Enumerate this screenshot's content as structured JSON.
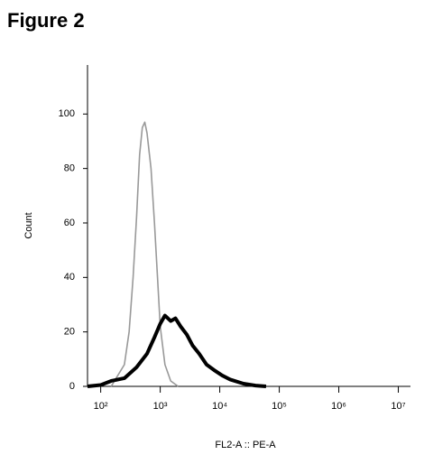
{
  "chart_data": {
    "type": "line",
    "title": "Figure 2",
    "x_label": "FL2-A :: PE-A",
    "y_label": "Count",
    "xscale": "log",
    "xlim": [
      60,
      16000000
    ],
    "xticks": [
      {
        "value": 100,
        "label": "10²"
      },
      {
        "value": 1000,
        "label": "10³"
      },
      {
        "value": 10000,
        "label": "10⁴"
      },
      {
        "value": 100000,
        "label": "10⁵"
      },
      {
        "value": 1000000,
        "label": "10⁶"
      },
      {
        "value": 10000000,
        "label": "10⁷"
      }
    ],
    "ylim": [
      0,
      118
    ],
    "yticks": [
      0,
      20,
      40,
      60,
      80,
      100
    ],
    "grid": false,
    "series": [
      {
        "color": "#999999",
        "width": 1.6,
        "x": [
          150,
          250,
          300,
          350,
          400,
          450,
          500,
          550,
          600,
          700,
          800,
          900,
          1000,
          1200,
          1500,
          2000
        ],
        "values": [
          0,
          8,
          20,
          40,
          62,
          85,
          95,
          97,
          93,
          80,
          60,
          40,
          22,
          8,
          2,
          0
        ]
      },
      {
        "color": "#000000",
        "width": 4,
        "x": [
          60,
          100,
          150,
          250,
          400,
          600,
          800,
          1000,
          1200,
          1500,
          1800,
          2200,
          2800,
          3500,
          4500,
          6000,
          8000,
          11000,
          15000,
          25000,
          40000,
          60000
        ],
        "values": [
          0,
          0.5,
          2,
          3,
          7,
          12,
          18,
          23,
          26,
          24,
          25,
          22,
          19,
          15,
          12,
          8,
          6,
          4,
          2.5,
          1,
          0.3,
          0
        ]
      }
    ]
  }
}
